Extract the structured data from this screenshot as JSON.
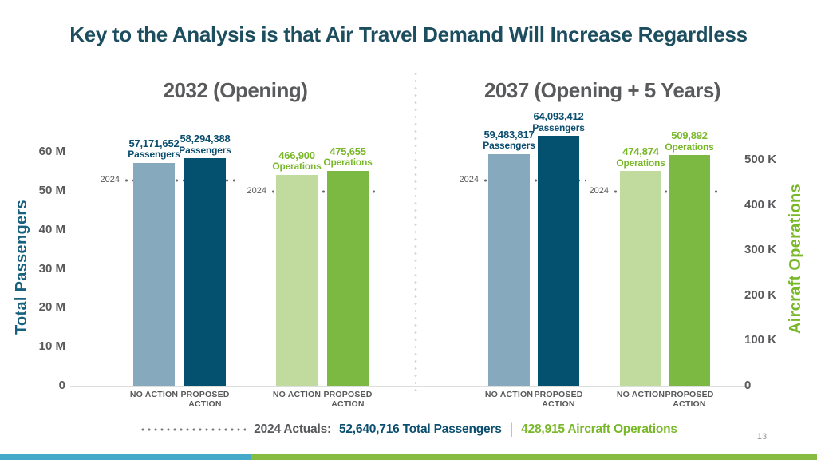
{
  "slide": {
    "title": "Key to the Analysis is that Air Travel Demand Will Increase Regardless",
    "page_number": "13"
  },
  "axes": {
    "left": {
      "label": "Total Passengers",
      "max": 60000000,
      "color": "#17617f",
      "ticks": [
        {
          "label": "60 M",
          "value": 60000000
        },
        {
          "label": "50 M",
          "value": 50000000
        },
        {
          "label": "40 M",
          "value": 40000000
        },
        {
          "label": "30 M",
          "value": 30000000
        },
        {
          "label": "20 M",
          "value": 20000000
        },
        {
          "label": "10 M",
          "value": 10000000
        },
        {
          "label": "0",
          "value": 0
        }
      ]
    },
    "right": {
      "label": "Aircraft Operations",
      "max": 500000,
      "color": "#79b829",
      "ticks": [
        {
          "label": "500 K",
          "value": 500000
        },
        {
          "label": "400 K",
          "value": 400000
        },
        {
          "label": "300 K",
          "value": 300000
        },
        {
          "label": "200 K",
          "value": 200000
        },
        {
          "label": "100 K",
          "value": 100000
        },
        {
          "label": "0",
          "value": 0
        }
      ]
    }
  },
  "chart_data": [
    {
      "type": "bar",
      "title": "2032 (Opening)",
      "groups": [
        {
          "name": "passengers",
          "axis": "left",
          "reference": {
            "label": "2024",
            "value": 52640716
          },
          "bars": [
            {
              "category": [
                "NO ACTION"
              ],
              "value": 57171652,
              "value_label": "57,171,652",
              "unit_label": "Passengers",
              "color": "#87a9bd",
              "label_color": "#0b4e6f"
            },
            {
              "category": [
                "PROPOSED",
                "ACTION"
              ],
              "value": 58294388,
              "value_label": "58,294,388",
              "unit_label": "Passengers",
              "color": "#04506f",
              "label_color": "#0b4e6f"
            }
          ]
        },
        {
          "name": "operations",
          "axis": "right",
          "reference": {
            "label": "2024",
            "value": 428915
          },
          "bars": [
            {
              "category": [
                "NO ACTION"
              ],
              "value": 466900,
              "value_label": "466,900",
              "unit_label": "Operations",
              "color": "#c1db9e",
              "label_color": "#79b829"
            },
            {
              "category": [
                "PROPOSED",
                "ACTION"
              ],
              "value": 475655,
              "value_label": "475,655",
              "unit_label": "Operations",
              "color": "#7cb942",
              "label_color": "#79b829"
            }
          ]
        }
      ]
    },
    {
      "type": "bar",
      "title": "2037 (Opening + 5 Years)",
      "groups": [
        {
          "name": "passengers",
          "axis": "left",
          "reference": {
            "label": "2024",
            "value": 52640716
          },
          "bars": [
            {
              "category": [
                "NO ACTION"
              ],
              "value": 59483817,
              "value_label": "59,483,817",
              "unit_label": "Passengers",
              "color": "#87a9bd",
              "label_color": "#0b4e6f"
            },
            {
              "category": [
                "PROPOSED",
                "ACTION"
              ],
              "value": 64093412,
              "value_label": "64,093,412",
              "unit_label": "Passengers",
              "color": "#04506f",
              "label_color": "#0b4e6f"
            }
          ]
        },
        {
          "name": "operations",
          "axis": "right",
          "reference": {
            "label": "2024",
            "value": 428915
          },
          "bars": [
            {
              "category": [
                "NO ACTION"
              ],
              "value": 474874,
              "value_label": "474,874",
              "unit_label": "Operations",
              "color": "#c1db9e",
              "label_color": "#79b829"
            },
            {
              "category": [
                "PROPOSED",
                "ACTION"
              ],
              "value": 509892,
              "value_label": "509,892",
              "unit_label": "Operations",
              "color": "#7cb942",
              "label_color": "#79b829"
            }
          ]
        }
      ]
    }
  ],
  "footer": {
    "label": "2024 Actuals:",
    "passengers": "52,640,716 Total Passengers",
    "separator": "|",
    "operations": "428,915 Aircraft Operations"
  }
}
